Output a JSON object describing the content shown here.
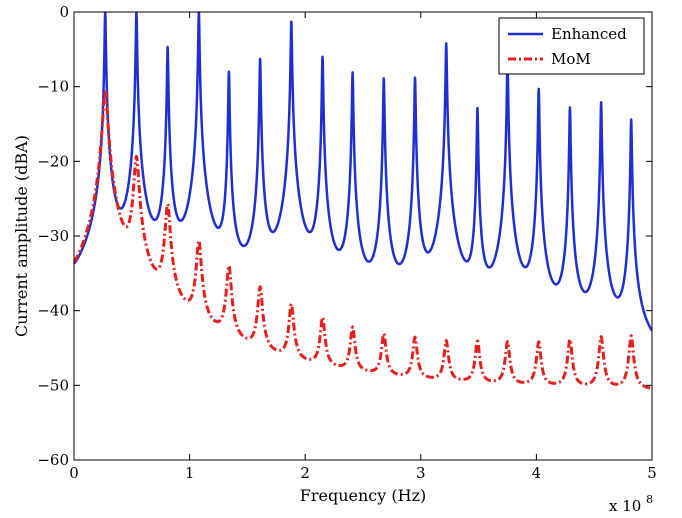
{
  "chart_data": {
    "type": "line",
    "xlabel": "Frequency (Hz)",
    "ylabel": "Current amplitude (dBA)",
    "x_multiplier_label": "x 10",
    "x_multiplier_exp": "8",
    "xlim": [
      0,
      5
    ],
    "ylim": [
      -60,
      0
    ],
    "xticks": [
      "0",
      "1",
      "2",
      "3",
      "4",
      "5"
    ],
    "yticks": [
      "0",
      "−10",
      "−20",
      "−30",
      "−40",
      "−50",
      "−60"
    ],
    "grid": false,
    "legend_position": "top-right",
    "series": [
      {
        "name": "Enhanced",
        "color": "#1f2fd6",
        "style": "solid",
        "baseline_db": -51.5,
        "resonances": [
          {
            "x": 0.27,
            "y": 0
          },
          {
            "x": 0.54,
            "y": 0
          },
          {
            "x": 0.81,
            "y": -4.7
          },
          {
            "x": 1.08,
            "y": 0
          },
          {
            "x": 1.34,
            "y": -8
          },
          {
            "x": 1.61,
            "y": -6.3
          },
          {
            "x": 1.88,
            "y": -1.3
          },
          {
            "x": 2.15,
            "y": -6
          },
          {
            "x": 2.41,
            "y": -8.1
          },
          {
            "x": 2.68,
            "y": -8.9
          },
          {
            "x": 2.95,
            "y": -8.8
          },
          {
            "x": 3.22,
            "y": -4.2
          },
          {
            "x": 3.49,
            "y": -12.9
          },
          {
            "x": 3.75,
            "y": -6.7
          },
          {
            "x": 4.02,
            "y": -10.3
          },
          {
            "x": 4.29,
            "y": -12.8
          },
          {
            "x": 4.56,
            "y": -12.1
          },
          {
            "x": 4.82,
            "y": -14.4
          }
        ]
      },
      {
        "name": "MoM",
        "color": "#e8201d",
        "style": "dashdot",
        "baseline_db": -51.5,
        "resonances": [
          {
            "x": 0.27,
            "y": -10.5
          },
          {
            "x": 0.54,
            "y": -19.5
          },
          {
            "x": 0.81,
            "y": -26
          },
          {
            "x": 1.08,
            "y": -31
          },
          {
            "x": 1.34,
            "y": -34.5
          },
          {
            "x": 1.61,
            "y": -37.5
          },
          {
            "x": 1.88,
            "y": -40
          },
          {
            "x": 2.15,
            "y": -42
          },
          {
            "x": 2.41,
            "y": -43.5
          },
          {
            "x": 2.68,
            "y": -44.5
          },
          {
            "x": 2.95,
            "y": -45
          },
          {
            "x": 3.22,
            "y": -45.5
          },
          {
            "x": 3.49,
            "y": -45.5
          },
          {
            "x": 3.75,
            "y": -45.5
          },
          {
            "x": 4.02,
            "y": -45.5
          },
          {
            "x": 4.29,
            "y": -45
          },
          {
            "x": 4.56,
            "y": -44.5
          },
          {
            "x": 4.82,
            "y": -44.3
          }
        ]
      }
    ]
  }
}
